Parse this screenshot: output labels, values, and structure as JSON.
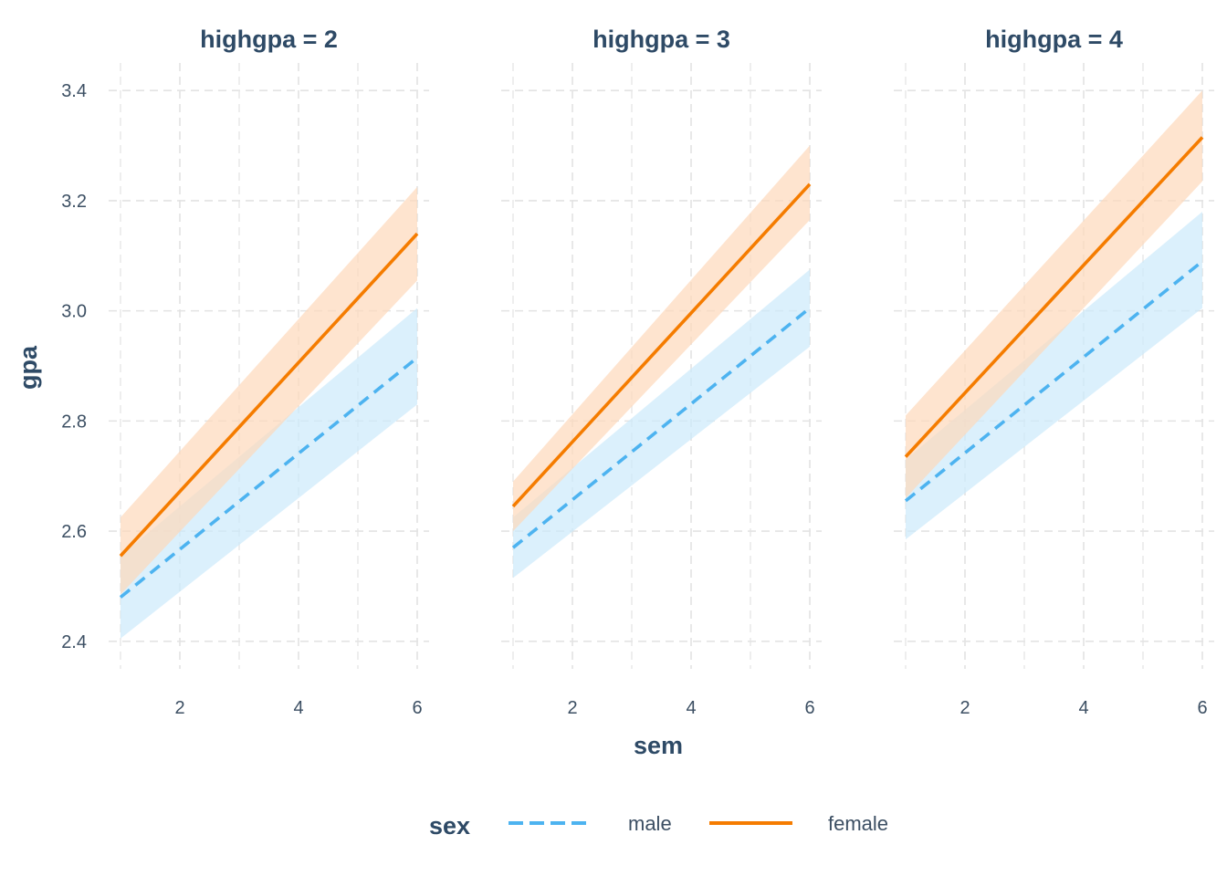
{
  "chart_data": {
    "type": "line",
    "facet_variable": "highgpa",
    "facets": [
      {
        "strip_label": "highgpa = 2",
        "x": [
          1,
          6
        ],
        "series": [
          {
            "name": "male",
            "values": [
              2.48,
              2.915
            ],
            "ci_lower": [
              2.405,
              2.83
            ],
            "ci_upper": [
              2.555,
              3.005
            ]
          },
          {
            "name": "female",
            "values": [
              2.555,
              3.14
            ],
            "ci_lower": [
              2.485,
              3.055
            ],
            "ci_upper": [
              2.625,
              3.225
            ]
          }
        ]
      },
      {
        "strip_label": "highgpa = 3",
        "x": [
          1,
          6
        ],
        "series": [
          {
            "name": "male",
            "values": [
              2.57,
              3.005
            ],
            "ci_lower": [
              2.515,
              2.935
            ],
            "ci_upper": [
              2.625,
              3.075
            ]
          },
          {
            "name": "female",
            "values": [
              2.645,
              3.23
            ],
            "ci_lower": [
              2.6,
              3.165
            ],
            "ci_upper": [
              2.69,
              3.3
            ]
          }
        ]
      },
      {
        "strip_label": "highgpa = 4",
        "x": [
          1,
          6
        ],
        "series": [
          {
            "name": "male",
            "values": [
              2.655,
              3.09
            ],
            "ci_lower": [
              2.585,
              3.005
            ],
            "ci_upper": [
              2.73,
              3.18
            ]
          },
          {
            "name": "female",
            "values": [
              2.735,
              3.315
            ],
            "ci_lower": [
              2.66,
              3.235
            ],
            "ci_upper": [
              2.81,
              3.4
            ]
          }
        ]
      }
    ],
    "xlabel": "sem",
    "ylabel": "gpa",
    "x_ticks": [
      "2",
      "4",
      "6"
    ],
    "y_ticks": [
      "2.4",
      "2.6",
      "2.8",
      "3.0",
      "3.2",
      "3.4"
    ],
    "xlim": [
      0.8,
      6.2
    ],
    "ylim": [
      2.35,
      3.45
    ],
    "grid": true,
    "legend": {
      "title": "sex",
      "position": "bottom",
      "entries": [
        {
          "label": "male",
          "color": "#4db3f0",
          "line_style": "dashed"
        },
        {
          "label": "female",
          "color": "#f57c00",
          "line_style": "solid"
        }
      ]
    },
    "colors": {
      "male": "#4db3f0",
      "female": "#f57c00",
      "male_ribbon": "#cce9fb",
      "female_ribbon": "#fdd9bb"
    }
  }
}
